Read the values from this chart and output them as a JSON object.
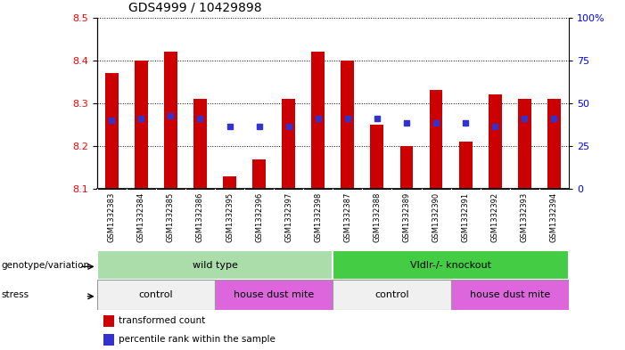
{
  "title": "GDS4999 / 10429898",
  "samples": [
    "GSM1332383",
    "GSM1332384",
    "GSM1332385",
    "GSM1332386",
    "GSM1332395",
    "GSM1332396",
    "GSM1332397",
    "GSM1332398",
    "GSM1332387",
    "GSM1332388",
    "GSM1332389",
    "GSM1332390",
    "GSM1332391",
    "GSM1332392",
    "GSM1332393",
    "GSM1332394"
  ],
  "transformed_counts": [
    8.37,
    8.4,
    8.42,
    8.31,
    8.13,
    8.17,
    8.31,
    8.42,
    8.4,
    8.25,
    8.2,
    8.33,
    8.21,
    8.32,
    8.31,
    8.31
  ],
  "percentile_values": [
    8.26,
    8.265,
    8.27,
    8.265,
    8.245,
    8.245,
    8.245,
    8.265,
    8.265,
    8.265,
    8.255,
    8.255,
    8.255,
    8.245,
    8.265,
    8.265
  ],
  "ymin": 8.1,
  "ymax": 8.5,
  "yticks": [
    8.1,
    8.2,
    8.3,
    8.4,
    8.5
  ],
  "right_yticks": [
    0,
    25,
    50,
    75,
    100
  ],
  "bar_color": "#cc0000",
  "dot_color": "#3333cc",
  "bar_bottom": 8.1,
  "plot_bg": "#ffffff",
  "tick_area_bg": "#cccccc",
  "genotype_groups": [
    {
      "label": "wild type",
      "start": 0,
      "end": 8,
      "color": "#aaddaa"
    },
    {
      "label": "Vldlr-/- knockout",
      "start": 8,
      "end": 16,
      "color": "#44cc44"
    }
  ],
  "stress_groups": [
    {
      "label": "control",
      "start": 0,
      "end": 4,
      "color": "#f0f0f0"
    },
    {
      "label": "house dust mite",
      "start": 4,
      "end": 8,
      "color": "#dd66dd"
    },
    {
      "label": "control",
      "start": 8,
      "end": 12,
      "color": "#f0f0f0"
    },
    {
      "label": "house dust mite",
      "start": 12,
      "end": 16,
      "color": "#dd66dd"
    }
  ]
}
